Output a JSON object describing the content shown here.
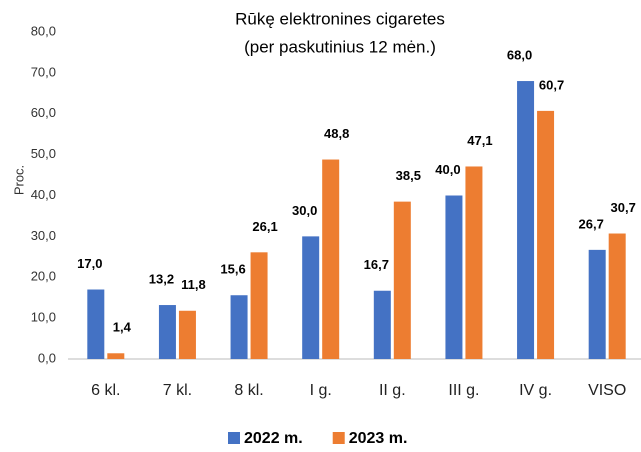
{
  "chart_data": {
    "type": "bar",
    "title": "Rūkę elektronines cigaretes",
    "subtitle": "(per paskutinius 12 mėn.)",
    "y_label": "Proc.",
    "categories": [
      "6 kl.",
      "7 kl.",
      "8 kl.",
      "I g.",
      "II g.",
      "III g.",
      "IV g.",
      "VISO"
    ],
    "series": [
      {
        "name": "2022 m.",
        "color": "#4472c4",
        "values": [
          17.0,
          13.2,
          15.6,
          30.0,
          16.7,
          40.0,
          68.0,
          26.7
        ],
        "value_labels": [
          "17,0",
          "13,2",
          "15,6",
          "30,0",
          "16,7",
          "40,0",
          "68,0",
          "26,7"
        ]
      },
      {
        "name": "2023 m.",
        "color": "#ed7d31",
        "values": [
          1.4,
          11.8,
          26.1,
          48.8,
          38.5,
          47.1,
          60.7,
          30.7
        ],
        "value_labels": [
          "1,4",
          "11,8",
          "26,1",
          "48,8",
          "38,5",
          "47,1",
          "60,7",
          "30,7"
        ]
      }
    ],
    "ylim": [
      0,
      80
    ],
    "yticks": [
      {
        "value": 0,
        "label": "0,0"
      },
      {
        "value": 10,
        "label": "10,0"
      },
      {
        "value": 20,
        "label": "20,0"
      },
      {
        "value": 30,
        "label": "30,0"
      },
      {
        "value": 40,
        "label": "40,0"
      },
      {
        "value": 50,
        "label": "50,0"
      },
      {
        "value": 60,
        "label": "60,0"
      },
      {
        "value": 70,
        "label": "70,0"
      },
      {
        "value": 80,
        "label": "80,0"
      }
    ],
    "grid": false,
    "legend": "bottom"
  }
}
